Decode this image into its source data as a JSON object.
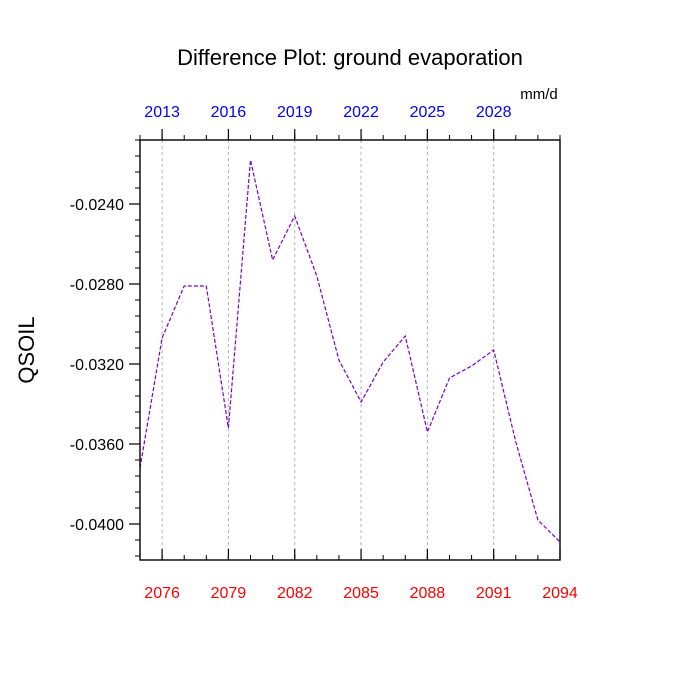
{
  "chart_data": {
    "type": "line",
    "title": "Difference Plot: ground evaporation",
    "ylabel": "QSOIL",
    "units": "mm/d",
    "xlim": [
      2075,
      2094
    ],
    "ylim": [
      -0.0418,
      -0.0208
    ],
    "bottom_axis": {
      "ticks": [
        2076,
        2079,
        2082,
        2085,
        2088,
        2091,
        2094
      ],
      "labels": [
        "2076",
        "2079",
        "2082",
        "2085",
        "2088",
        "2091",
        "2094"
      ],
      "color": "#ff0000"
    },
    "top_axis": {
      "ticks": [
        2076,
        2079,
        2082,
        2085,
        2088,
        2091
      ],
      "labels": [
        "2013",
        "2016",
        "2019",
        "2022",
        "2025",
        "2028"
      ],
      "color": "#0000ff"
    },
    "y_ticks": [
      -0.024,
      -0.028,
      -0.032,
      -0.036,
      -0.04
    ],
    "y_tick_labels": [
      "-0.0240",
      "-0.0280",
      "-0.0320",
      "-0.0360",
      "-0.0400"
    ],
    "grid": "vertical dashed",
    "series": [
      {
        "color": "#7a00c8",
        "style": "dashed",
        "x": [
          2075,
          2076,
          2077,
          2078,
          2079,
          2080,
          2081,
          2082,
          2083,
          2084,
          2085,
          2086,
          2087,
          2088,
          2089,
          2090,
          2091,
          2092,
          2093,
          2094
        ],
        "values": [
          -0.0372,
          -0.0307,
          -0.0281,
          -0.0281,
          -0.0352,
          -0.0218,
          -0.0268,
          -0.0246,
          -0.0276,
          -0.0318,
          -0.0339,
          -0.0319,
          -0.0306,
          -0.0354,
          -0.0327,
          -0.0321,
          -0.0313,
          -0.0359,
          -0.0398,
          -0.0409
        ]
      }
    ]
  }
}
